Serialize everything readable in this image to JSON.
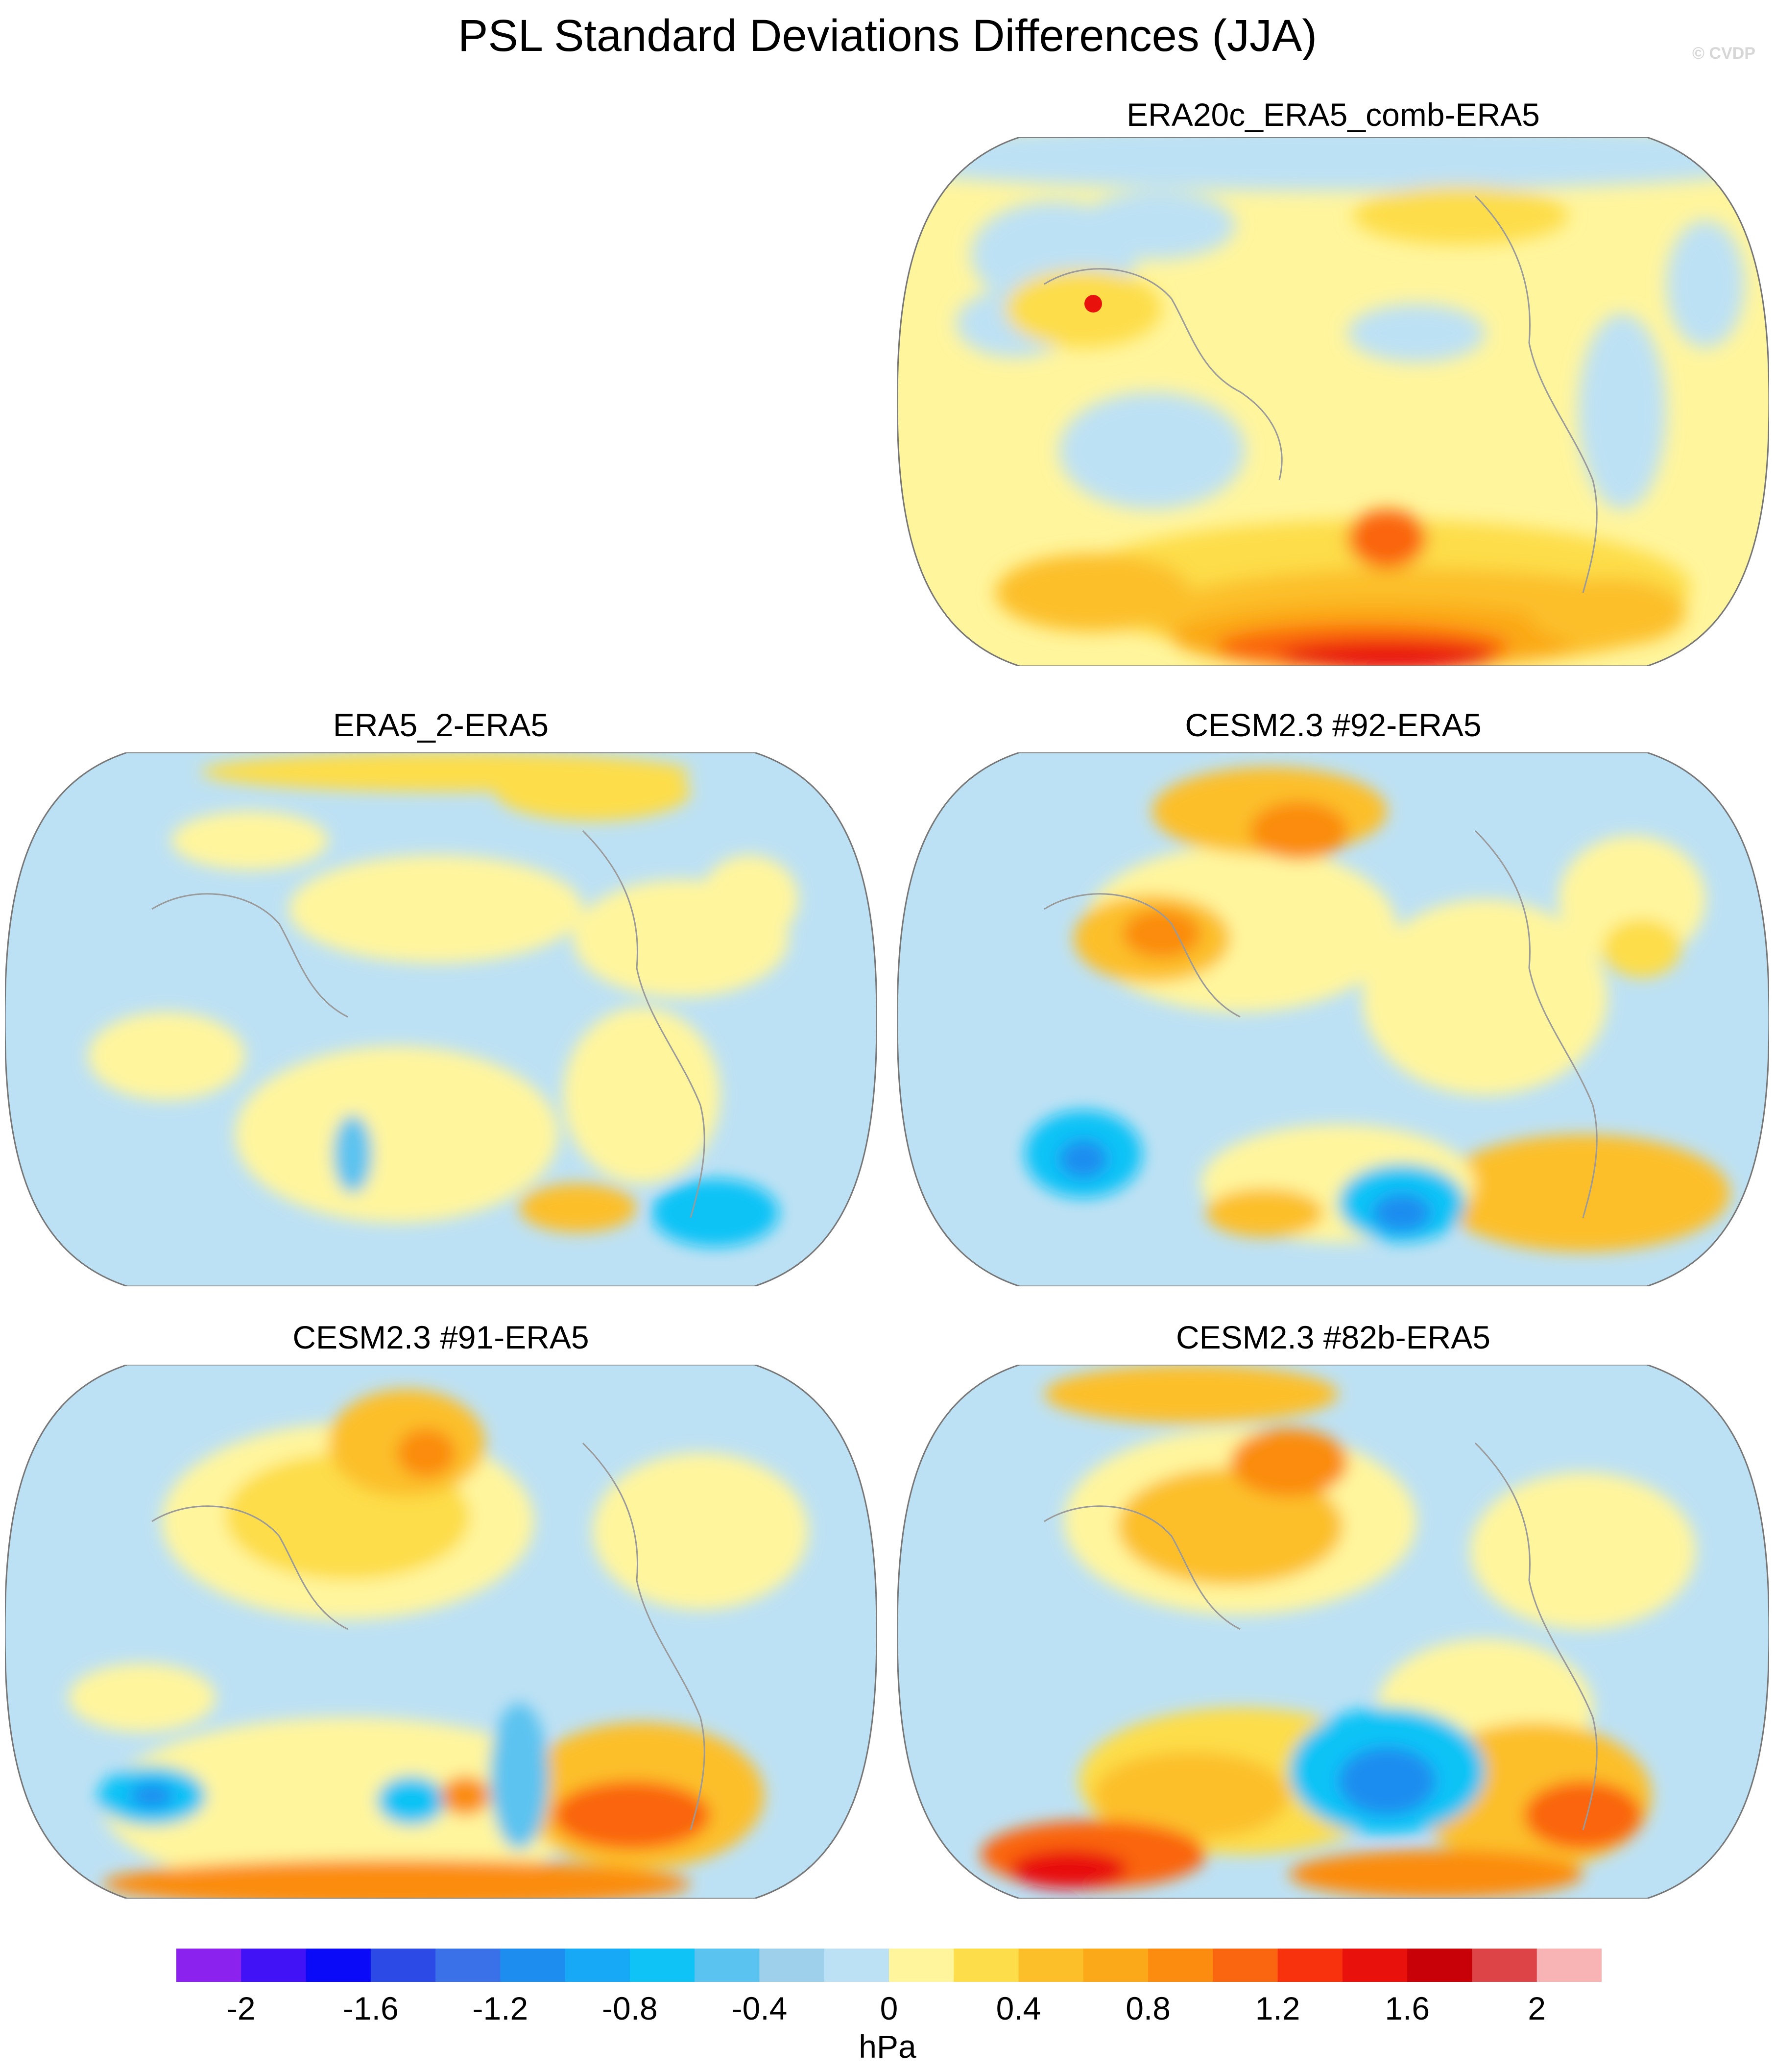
{
  "title": "PSL Standard Deviations Differences (JJA)",
  "watermark": "© CVDP",
  "panels": [
    {
      "id": "p1",
      "title": "ERA20c_ERA5_comb-ERA5"
    },
    {
      "id": "p2",
      "title": "ERA5_2-ERA5"
    },
    {
      "id": "p3",
      "title": "CESM2.3 #92-ERA5"
    },
    {
      "id": "p4",
      "title": "CESM2.3 #91-ERA5"
    },
    {
      "id": "p5",
      "title": "CESM2.3 #82b-ERA5"
    }
  ],
  "colorbar": {
    "units": "hPa",
    "min": -2.2,
    "max": 2.2,
    "step": 0.2,
    "tick_labels": [
      "-2",
      "-1.6",
      "-1.2",
      "-0.8",
      "-0.4",
      "0",
      "0.4",
      "0.8",
      "1.2",
      "1.6",
      "2"
    ],
    "tick_values": [
      -2,
      -1.6,
      -1.2,
      -0.8,
      -0.4,
      0,
      0.4,
      0.8,
      1.2,
      1.6,
      2
    ],
    "colors": [
      "#8b22ee",
      "#4212f6",
      "#0a0af8",
      "#2b4ae6",
      "#3a70e8",
      "#1e8df0",
      "#17a9f5",
      "#10c3f6",
      "#5bc3f0",
      "#9ed0ec",
      "#bde1f4",
      "#fff59d",
      "#fddd4a",
      "#fcbf2a",
      "#fba918",
      "#fb8c10",
      "#fa6510",
      "#f8320c",
      "#e8110c",
      "#c80008",
      "#dc4448",
      "#f8b4b4"
    ]
  }
}
